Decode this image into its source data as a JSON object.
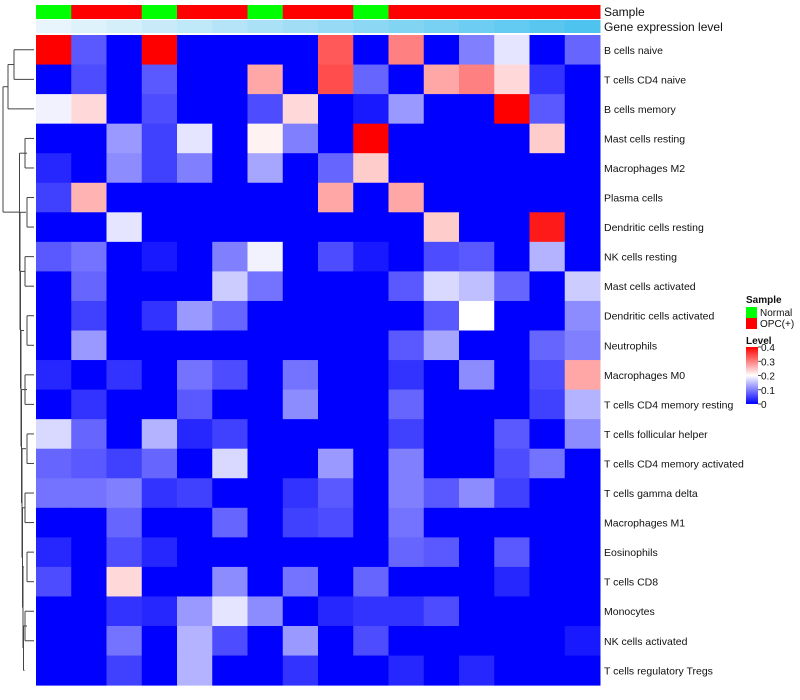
{
  "chart_data": {
    "type": "heatmap",
    "title": "",
    "annotation_rows": [
      {
        "name": "Sample",
        "values": [
          "Normal",
          "OPC(+)",
          "OPC(+)",
          "Normal",
          "OPC(+)",
          "OPC(+)",
          "Normal",
          "OPC(+)",
          "OPC(+)",
          "Normal",
          "OPC(+)",
          "OPC(+)",
          "OPC(+)",
          "OPC(+)",
          "OPC(+)",
          "OPC(+)"
        ]
      },
      {
        "name": "Gene expression level",
        "values": [
          0.02,
          0.04,
          0.06,
          0.08,
          0.1,
          0.12,
          0.14,
          0.16,
          0.18,
          0.2,
          0.22,
          0.24,
          0.26,
          0.28,
          0.3,
          0.32
        ]
      }
    ],
    "rows": [
      "B cells naive",
      "T cells CD4 naive",
      "B cells memory",
      "Mast cells resting",
      "Macrophages M2",
      "Plasma cells",
      "Dendritic cells resting",
      "NK cells resting",
      "Mast cells activated",
      "Dendritic cells activated",
      "Neutrophils",
      "Macrophages M0",
      "T cells CD4 memory resting",
      "T cells follicular helper",
      "T cells CD4 memory activated",
      "T cells gamma delta",
      "Macrophages M1",
      "Eosinophils",
      "T cells CD8",
      "Monocytes",
      "NK cells activated",
      "T cells regulatory  Tregs"
    ],
    "values": [
      [
        0.4,
        0.07,
        0.0,
        0.4,
        0.0,
        0.0,
        0.0,
        0.0,
        0.33,
        0.0,
        0.3,
        0.0,
        0.1,
        0.18,
        0.0,
        0.08
      ],
      [
        0.0,
        0.06,
        0.0,
        0.07,
        0.0,
        0.0,
        0.27,
        0.0,
        0.34,
        0.08,
        0.0,
        0.27,
        0.3,
        0.23,
        0.04,
        0.0
      ],
      [
        0.19,
        0.23,
        0.0,
        0.06,
        0.0,
        0.0,
        0.06,
        0.23,
        0.0,
        0.02,
        0.12,
        0.0,
        0.0,
        0.4,
        0.07,
        0.0
      ],
      [
        0.0,
        0.0,
        0.12,
        0.05,
        0.18,
        0.0,
        0.21,
        0.1,
        0.0,
        0.4,
        0.0,
        0.0,
        0.0,
        0.0,
        0.24,
        0.0
      ],
      [
        0.03,
        0.0,
        0.11,
        0.05,
        0.1,
        0.0,
        0.13,
        0.0,
        0.08,
        0.24,
        0.0,
        0.0,
        0.0,
        0.0,
        0.0,
        0.0
      ],
      [
        0.05,
        0.26,
        0.0,
        0.0,
        0.0,
        0.0,
        0.0,
        0.0,
        0.27,
        0.0,
        0.27,
        0.0,
        0.0,
        0.0,
        0.0,
        0.0
      ],
      [
        0.0,
        0.0,
        0.18,
        0.0,
        0.0,
        0.0,
        0.0,
        0.0,
        0.0,
        0.0,
        0.0,
        0.24,
        0.0,
        0.0,
        0.38,
        0.0
      ],
      [
        0.07,
        0.09,
        0.0,
        0.02,
        0.0,
        0.1,
        0.19,
        0.0,
        0.06,
        0.02,
        0.0,
        0.06,
        0.07,
        0.0,
        0.14,
        0.0
      ],
      [
        0.0,
        0.08,
        0.0,
        0.0,
        0.0,
        0.16,
        0.09,
        0.0,
        0.0,
        0.0,
        0.07,
        0.17,
        0.15,
        0.08,
        0.0,
        0.16
      ],
      [
        0.0,
        0.05,
        0.0,
        0.04,
        0.12,
        0.08,
        0.0,
        0.0,
        0.0,
        0.0,
        0.0,
        0.07,
        0.2,
        0.0,
        0.0,
        0.11
      ],
      [
        0.0,
        0.12,
        0.0,
        0.0,
        0.0,
        0.0,
        0.0,
        0.0,
        0.0,
        0.0,
        0.07,
        0.13,
        0.0,
        0.0,
        0.08,
        0.1
      ],
      [
        0.03,
        0.0,
        0.04,
        0.0,
        0.09,
        0.06,
        0.0,
        0.09,
        0.0,
        0.0,
        0.04,
        0.0,
        0.11,
        0.0,
        0.06,
        0.27
      ],
      [
        0.0,
        0.04,
        0.0,
        0.0,
        0.07,
        0.0,
        0.0,
        0.11,
        0.0,
        0.0,
        0.08,
        0.0,
        0.0,
        0.0,
        0.05,
        0.14
      ],
      [
        0.17,
        0.08,
        0.0,
        0.14,
        0.03,
        0.05,
        0.0,
        0.0,
        0.0,
        0.0,
        0.05,
        0.0,
        0.0,
        0.07,
        0.0,
        0.11
      ],
      [
        0.08,
        0.07,
        0.05,
        0.08,
        0.0,
        0.17,
        0.0,
        0.0,
        0.12,
        0.0,
        0.1,
        0.0,
        0.0,
        0.06,
        0.09,
        0.0
      ],
      [
        0.09,
        0.09,
        0.1,
        0.04,
        0.05,
        0.0,
        0.0,
        0.04,
        0.07,
        0.0,
        0.1,
        0.07,
        0.11,
        0.05,
        0.0,
        0.0
      ],
      [
        0.0,
        0.0,
        0.08,
        0.0,
        0.0,
        0.08,
        0.0,
        0.05,
        0.06,
        0.0,
        0.09,
        0.0,
        0.0,
        0.0,
        0.0,
        0.0
      ],
      [
        0.03,
        0.0,
        0.06,
        0.03,
        0.0,
        0.0,
        0.0,
        0.0,
        0.0,
        0.0,
        0.08,
        0.07,
        0.0,
        0.07,
        0.0,
        0.0
      ],
      [
        0.06,
        0.0,
        0.23,
        0.0,
        0.0,
        0.11,
        0.0,
        0.09,
        0.0,
        0.08,
        0.0,
        0.0,
        0.0,
        0.03,
        0.0,
        0.0
      ],
      [
        0.0,
        0.0,
        0.04,
        0.03,
        0.12,
        0.18,
        0.11,
        0.0,
        0.03,
        0.04,
        0.04,
        0.06,
        0.0,
        0.0,
        0.0,
        0.0
      ],
      [
        0.0,
        0.0,
        0.09,
        0.0,
        0.14,
        0.06,
        0.0,
        0.12,
        0.0,
        0.06,
        0.0,
        0.0,
        0.0,
        0.0,
        0.0,
        0.02
      ],
      [
        0.0,
        0.0,
        0.05,
        0.0,
        0.14,
        0.0,
        0.0,
        0.04,
        0.0,
        0.0,
        0.03,
        0.0,
        0.03,
        0.0,
        0.0,
        0.0
      ]
    ],
    "color_scale": {
      "min": 0,
      "max": 0.4,
      "low": "#0000ff",
      "mid": "#ffffff",
      "high": "#ff0000"
    },
    "legend": {
      "sample_title": "Sample",
      "sample_items": [
        {
          "label": "Normal",
          "color": "#00ff00"
        },
        {
          "label": "OPC(+)",
          "color": "#ff0000"
        }
      ],
      "level_title": "Level",
      "level_ticks": [
        "0.4",
        "0.3",
        "0.2",
        "0.1",
        "0"
      ],
      "level_tick_values": [
        0.4,
        0.3,
        0.2,
        0.1,
        0
      ]
    },
    "annotation_colors": {
      "expression_low": "#e8f5fc",
      "expression_high": "#4fc3ef"
    },
    "dendrogram": "left"
  }
}
